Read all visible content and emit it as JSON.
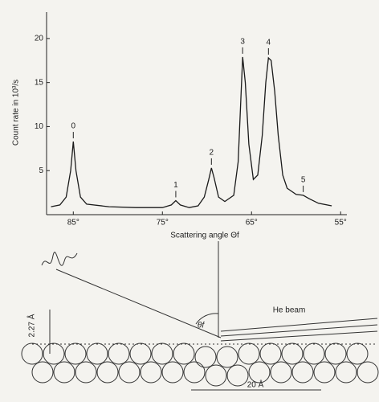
{
  "chart_data": {
    "type": "line",
    "ylabel": "Count rate in 10³/s",
    "xlabel": "Scattering angle Θf",
    "x": [
      87.5,
      86.5,
      85.8,
      85.3,
      85,
      84.7,
      84.2,
      83.5,
      81,
      78,
      75,
      74,
      73.5,
      73,
      72,
      71,
      70.3,
      69.8,
      69.5,
      69.2,
      68.7,
      68,
      67,
      66.5,
      66.2,
      66,
      65.7,
      65.3,
      64.8,
      64.3,
      63.8,
      63.4,
      63.1,
      62.8,
      62.4,
      62,
      61.5,
      61,
      60,
      59.2,
      58.5,
      57.5,
      56
    ],
    "values": [
      0.9,
      1.1,
      2,
      5,
      8.3,
      5,
      2,
      1.2,
      0.9,
      0.8,
      0.8,
      1.1,
      1.6,
      1.1,
      0.8,
      1.0,
      2,
      4,
      5.3,
      4.2,
      2,
      1.5,
      2.2,
      6,
      13,
      17.9,
      15,
      8,
      4,
      4.5,
      9,
      15,
      17.8,
      17.5,
      14,
      9,
      4.5,
      3,
      2.3,
      2.2,
      1.8,
      1.3,
      1.0
    ],
    "color": "#1a1a1a",
    "xlim": [
      88,
      54.3
    ],
    "ylim": [
      0,
      23
    ],
    "xticks": [
      {
        "value": 85,
        "label": "85°"
      },
      {
        "value": 75,
        "label": "75°"
      },
      {
        "value": 65,
        "label": "65°"
      },
      {
        "value": 55,
        "label": "55°"
      }
    ],
    "yticks": [
      5,
      10,
      15,
      20
    ],
    "annotations": [
      {
        "text": "0",
        "x": 85,
        "y": 8.3
      },
      {
        "text": "1",
        "x": 73.5,
        "y": 1.6
      },
      {
        "text": "2",
        "x": 69.5,
        "y": 5.3
      },
      {
        "text": "3",
        "x": 66,
        "y": 17.9
      },
      {
        "text": "4",
        "x": 63.1,
        "y": 17.8
      },
      {
        "text": "5",
        "x": 59.2,
        "y": 2.2
      }
    ]
  },
  "diagram": {
    "beam_label": "He beam",
    "angle_label": "θf",
    "height_label": "2.27 Å",
    "width_label": "20 Å"
  }
}
